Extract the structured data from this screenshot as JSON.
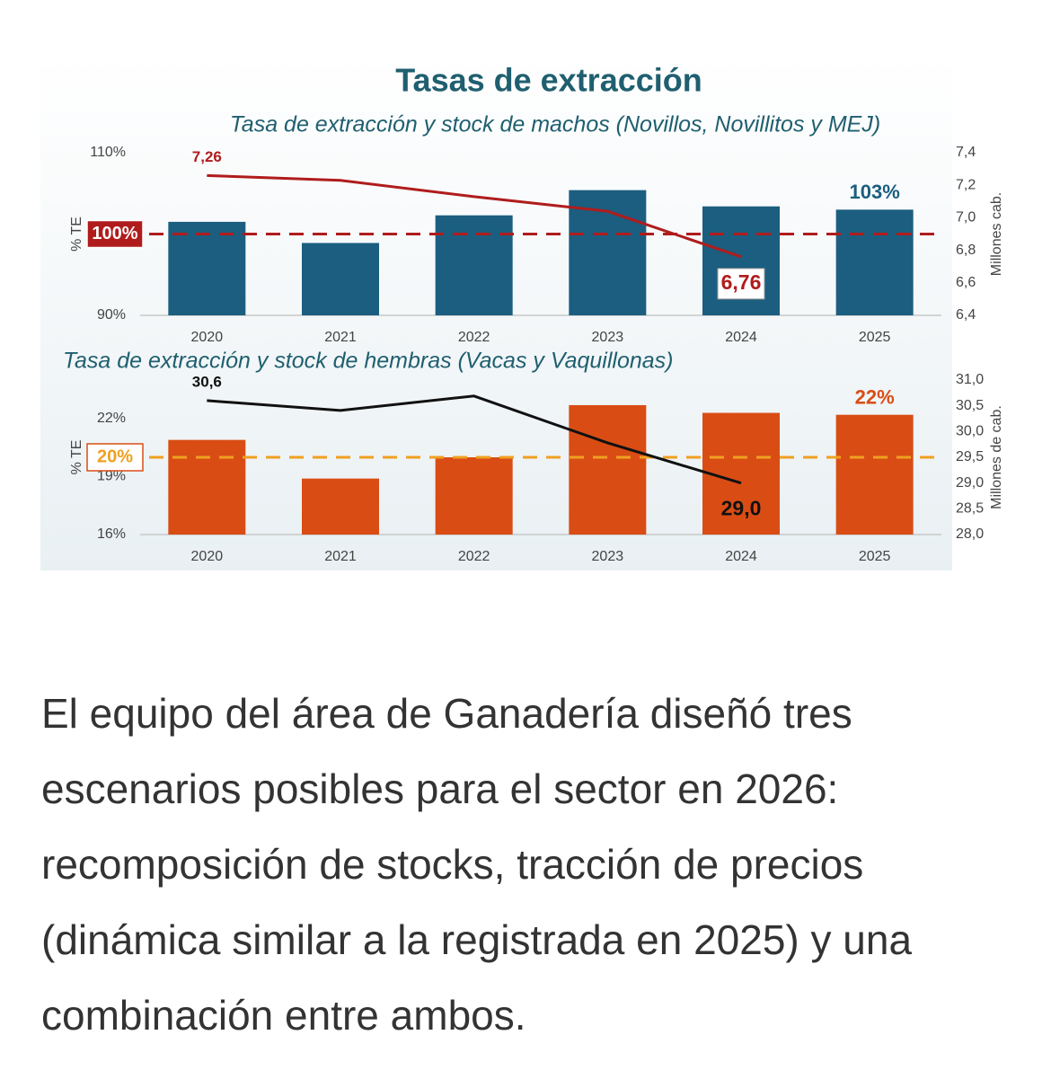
{
  "title": "Tasas de extracción",
  "chart_data": [
    {
      "type": "bar",
      "subtitle": "Tasa de extracción y stock de machos (Novillos, Novillitos y MEJ)",
      "categories": [
        "2020",
        "2021",
        "2022",
        "2023",
        "2024",
        "2025"
      ],
      "series": [
        {
          "type": "bar",
          "color": "#1b5e80",
          "values": [
            101.5,
            98.9,
            102.3,
            105.4,
            103.4,
            103
          ],
          "value_labels": [
            null,
            null,
            null,
            null,
            null,
            "103%"
          ]
        },
        {
          "type": "line",
          "axis": "y2",
          "color": "#b01c1c",
          "values": [
            7.26,
            7.23,
            7.13,
            7.04,
            6.76,
            null
          ],
          "value_labels": [
            "7,26",
            null,
            null,
            null,
            "6,76",
            null
          ]
        }
      ],
      "reference_line": {
        "value": 100,
        "label": "100%",
        "color": "#b01c1c"
      },
      "ylabel": "% TE",
      "y2label": "Millones cab.",
      "ylim": [
        90,
        110
      ],
      "yticks": [
        {
          "value": 90,
          "label": "90%"
        },
        {
          "value": 110,
          "label": "110%"
        }
      ],
      "y2lim": [
        6.4,
        7.4
      ],
      "y2ticks": [
        {
          "value": 6.4,
          "label": "6,4"
        },
        {
          "value": 6.6,
          "label": "6,6"
        },
        {
          "value": 6.8,
          "label": "6,8"
        },
        {
          "value": 7.0,
          "label": "7,0"
        },
        {
          "value": 7.2,
          "label": "7,2"
        },
        {
          "value": 7.4,
          "label": "7,4"
        }
      ]
    },
    {
      "type": "bar",
      "subtitle": "Tasa de extracción y stock de hembras (Vacas y Vaquillonas)",
      "categories": [
        "2020",
        "2021",
        "2022",
        "2023",
        "2024",
        "2025"
      ],
      "series": [
        {
          "type": "bar",
          "color": "#d94d15",
          "values": [
            20.9,
            18.9,
            20.0,
            22.7,
            22.3,
            22.2
          ],
          "value_labels": [
            null,
            null,
            null,
            null,
            null,
            "22%"
          ]
        },
        {
          "type": "line",
          "axis": "y2",
          "color": "#111111",
          "values": [
            30.6,
            30.41,
            30.69,
            29.78,
            29.0,
            null
          ],
          "value_labels": [
            "30,6",
            null,
            null,
            null,
            "29,0",
            null
          ]
        }
      ],
      "reference_line": {
        "value": 20,
        "label": "20%",
        "color": "#f0a020"
      },
      "ylabel": "% TE",
      "y2label": "Millones de cab.",
      "ylim": [
        16,
        24
      ],
      "yticks": [
        {
          "value": 16,
          "label": "16%"
        },
        {
          "value": 19,
          "label": "19%"
        },
        {
          "value": 22,
          "label": "22%"
        }
      ],
      "y2lim": [
        28,
        31
      ],
      "y2ticks": [
        {
          "value": 28.0,
          "label": "28,0"
        },
        {
          "value": 28.5,
          "label": "28,5"
        },
        {
          "value": 29.0,
          "label": "29,0"
        },
        {
          "value": 29.5,
          "label": "29,5"
        },
        {
          "value": 30.0,
          "label": "30,0"
        },
        {
          "value": 30.5,
          "label": "30,5"
        },
        {
          "value": 31.0,
          "label": "31,0"
        }
      ]
    }
  ],
  "article": {
    "paragraph": "El equipo del área de Ganadería diseñó tres escenarios posibles para el sector en 2026: recomposición de stocks, tracción de precios (dinámica similar a la registrada en 2025) y una combinación entre ambos."
  }
}
